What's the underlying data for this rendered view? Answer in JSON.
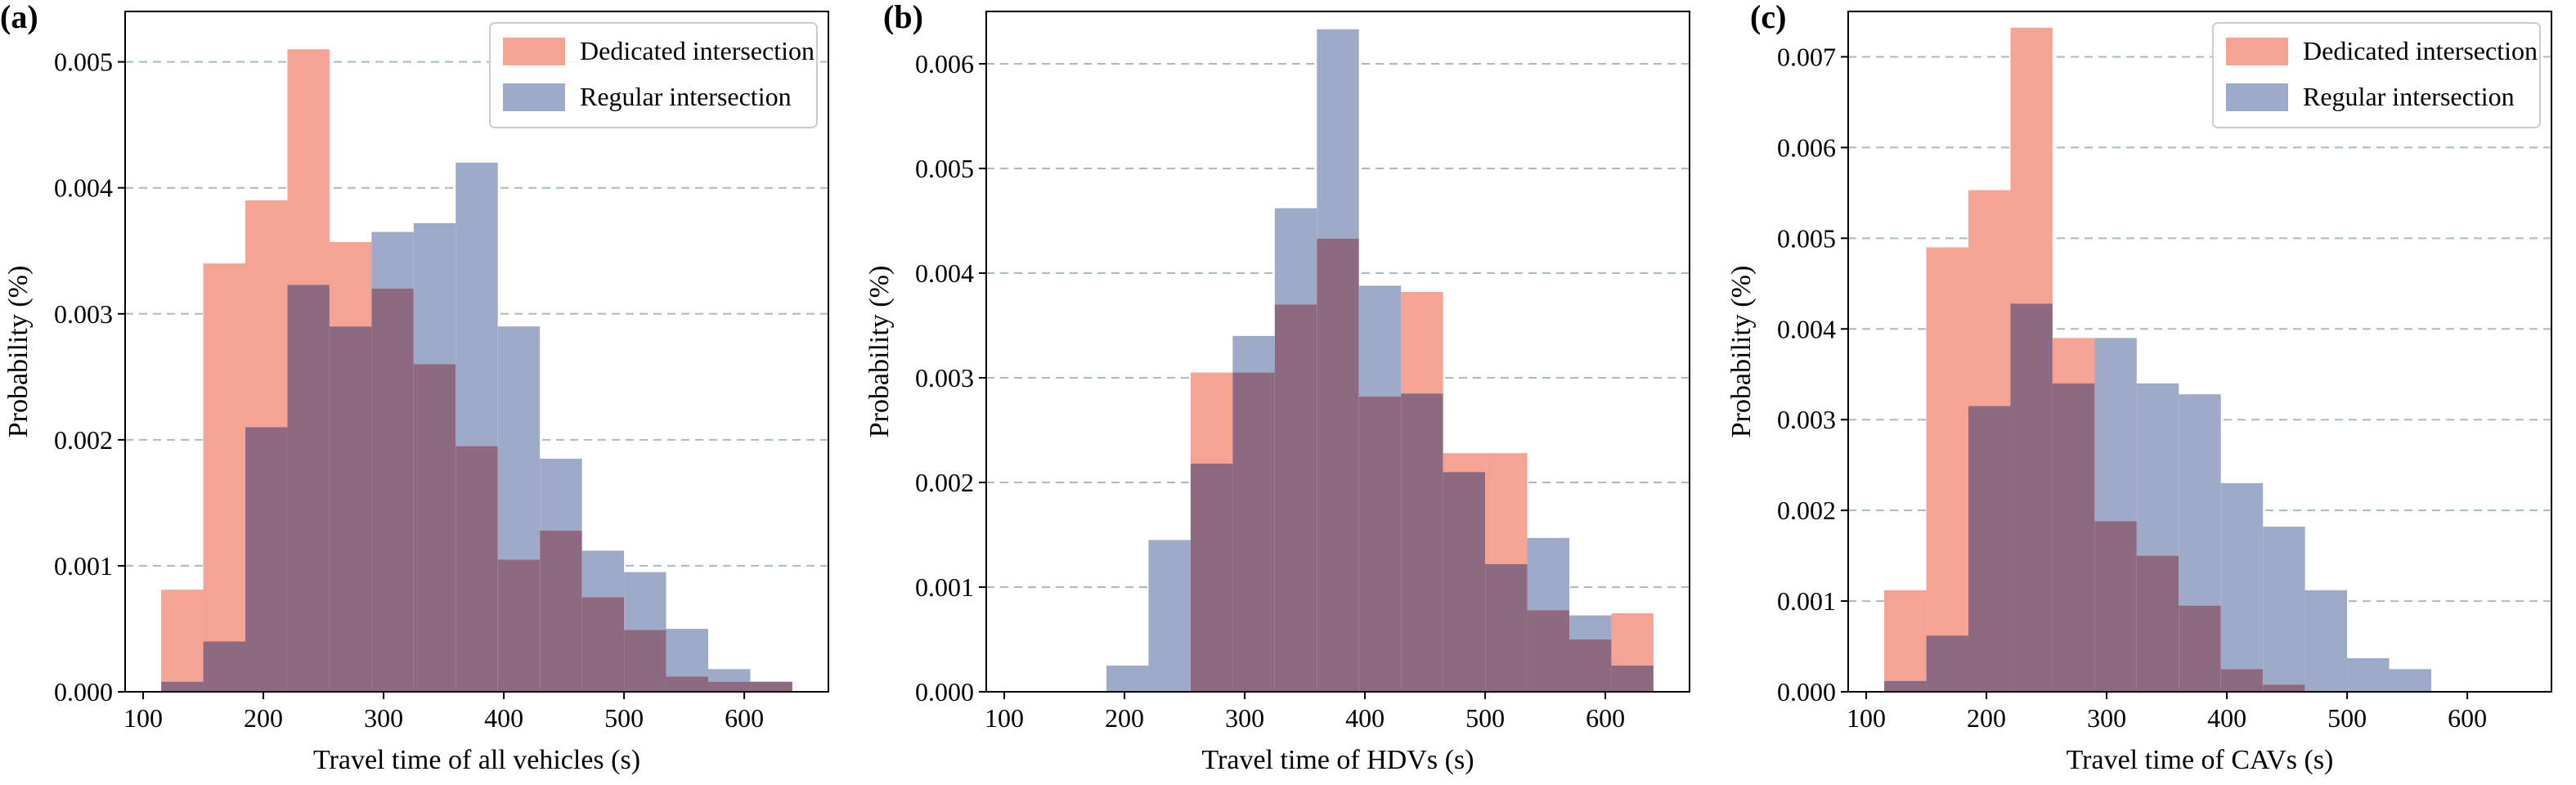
{
  "colors": {
    "dedicated": "#f4a395",
    "regular": "#9fa9c8",
    "overlap": "#8e6a82",
    "grid": "#a5bcc0"
  },
  "chart_data": [
    {
      "type": "histogram",
      "panel_label": "(a)",
      "xlabel": "Travel time of all vehicles (s)",
      "ylabel": "Probability (%)",
      "xlim": [
        85,
        670
      ],
      "ylim": [
        0,
        0.0054
      ],
      "xticks": [
        100,
        200,
        300,
        400,
        500,
        600
      ],
      "xtick_labels": [
        "100",
        "200",
        "300",
        "400",
        "500",
        "600"
      ],
      "yticks": [
        0,
        0.001,
        0.002,
        0.003,
        0.004,
        0.005
      ],
      "ytick_labels": [
        "0.000",
        "0.001",
        "0.002",
        "0.003",
        "0.004",
        "0.005"
      ],
      "grid": "horizontal-dashed",
      "legend": "top-right",
      "bins": [
        115,
        150,
        185,
        220,
        255,
        290,
        325,
        360,
        395,
        430,
        465,
        500,
        535,
        570,
        605,
        640
      ],
      "series": [
        {
          "name": "Dedicated intersection",
          "values": [
            0.00081,
            0.0034,
            0.0039,
            0.0051,
            0.00357,
            0.0032,
            0.0026,
            0.00195,
            0.00105,
            0.00128,
            0.00075,
            0.00049,
            0.00012,
            8e-05,
            8e-05
          ]
        },
        {
          "name": "Regular intersection",
          "values": [
            8e-05,
            0.0004,
            0.0021,
            0.00323,
            0.0029,
            0.00365,
            0.00372,
            0.0042,
            0.0029,
            0.00185,
            0.00112,
            0.00095,
            0.0005,
            0.00018,
            8e-05
          ]
        }
      ]
    },
    {
      "type": "histogram",
      "panel_label": "(b)",
      "xlabel": "Travel time of HDVs (s)",
      "ylabel": "Probability (%)",
      "xlim": [
        85,
        670
      ],
      "ylim": [
        0,
        0.0065
      ],
      "xticks": [
        100,
        200,
        300,
        400,
        500,
        600
      ],
      "xtick_labels": [
        "100",
        "200",
        "300",
        "400",
        "500",
        "600"
      ],
      "yticks": [
        0,
        0.001,
        0.002,
        0.003,
        0.004,
        0.005,
        0.006
      ],
      "ytick_labels": [
        "0.000",
        "0.001",
        "0.002",
        "0.003",
        "0.004",
        "0.005",
        "0.006"
      ],
      "grid": "horizontal-dashed",
      "legend": "none",
      "bins": [
        185,
        220,
        255,
        290,
        325,
        360,
        395,
        430,
        465,
        500,
        535,
        570,
        605,
        640
      ],
      "series": [
        {
          "name": "Dedicated intersection",
          "values": [
            0,
            0,
            0.00305,
            0.00305,
            0.0037,
            0.00433,
            0.00282,
            0.00382,
            0.00228,
            0.00228,
            0.00078,
            0.0005,
            0.00075
          ]
        },
        {
          "name": "Regular intersection",
          "values": [
            0.00025,
            0.00145,
            0.00218,
            0.0034,
            0.00462,
            0.00633,
            0.00388,
            0.00285,
            0.0021,
            0.00122,
            0.00147,
            0.00073,
            0.00025
          ]
        }
      ]
    },
    {
      "type": "histogram",
      "panel_label": "(c)",
      "xlabel": "Travel time of CAVs (s)",
      "ylabel": "Probability (%)",
      "xlim": [
        85,
        670
      ],
      "ylim": [
        0,
        0.0075
      ],
      "xticks": [
        100,
        200,
        300,
        400,
        500,
        600
      ],
      "xtick_labels": [
        "100",
        "200",
        "300",
        "400",
        "500",
        "600"
      ],
      "yticks": [
        0,
        0.001,
        0.002,
        0.003,
        0.004,
        0.005,
        0.006,
        0.007
      ],
      "ytick_labels": [
        "0.000",
        "0.001",
        "0.002",
        "0.003",
        "0.004",
        "0.005",
        "0.006",
        "0.007"
      ],
      "grid": "horizontal-dashed",
      "legend": "top-right",
      "bins": [
        115,
        150,
        185,
        220,
        255,
        290,
        325,
        360,
        395,
        430,
        465,
        500,
        535,
        570
      ],
      "series": [
        {
          "name": "Dedicated intersection",
          "values": [
            0.00112,
            0.0049,
            0.00553,
            0.00732,
            0.0039,
            0.00188,
            0.0015,
            0.00095,
            0.00025,
            8e-05,
            0,
            0,
            0
          ]
        },
        {
          "name": "Regular intersection",
          "values": [
            0.00012,
            0.00062,
            0.00315,
            0.00428,
            0.0034,
            0.0039,
            0.0034,
            0.00328,
            0.0023,
            0.00182,
            0.00112,
            0.00037,
            0.00025
          ]
        }
      ]
    }
  ]
}
